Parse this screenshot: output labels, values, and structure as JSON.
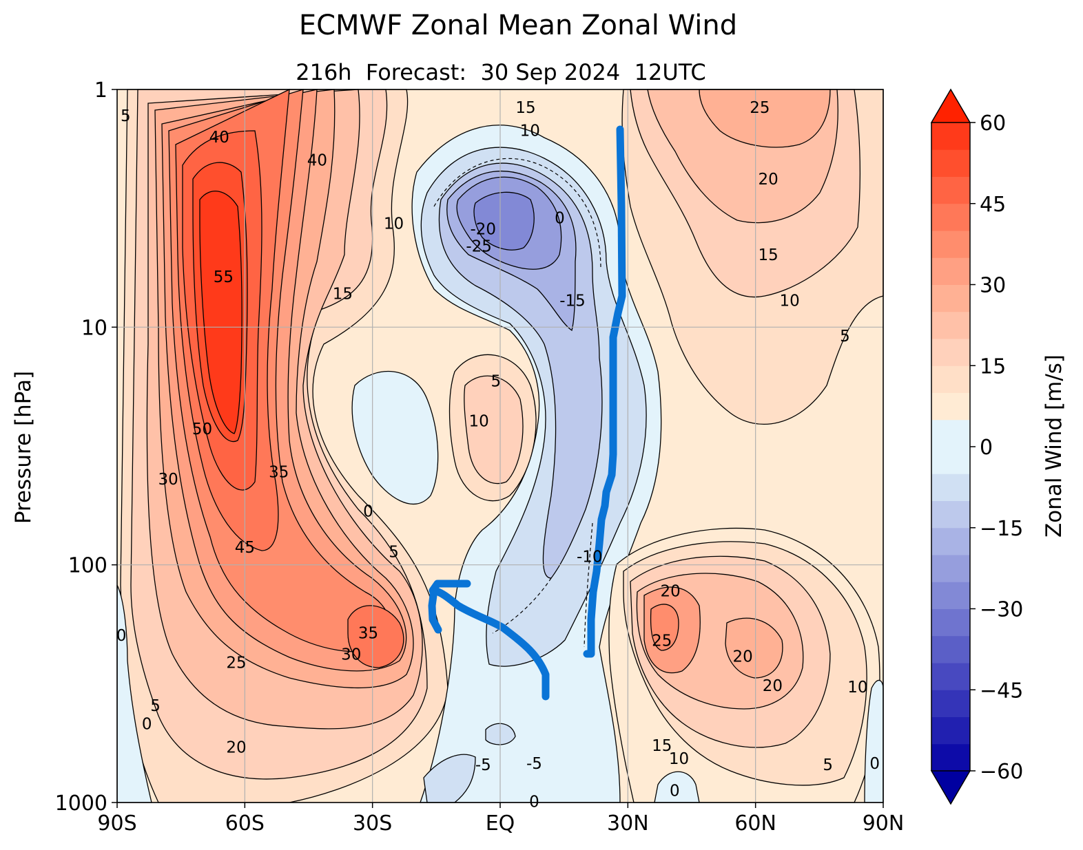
{
  "chart_data": {
    "type": "heatmap",
    "title": "ECMWF Zonal Mean Zonal Wind",
    "subtitle": "216h  Forecast:  30 Sep 2024  12UTC",
    "xlabel": "",
    "ylabel": "Pressure [hPa]",
    "x_range_deg": [
      -90,
      90
    ],
    "y_range_hpa": [
      1,
      1000
    ],
    "y_scale": "log",
    "x_ticks": [
      {
        "value": -90,
        "label": "90S"
      },
      {
        "value": -60,
        "label": "60S"
      },
      {
        "value": -30,
        "label": "30S"
      },
      {
        "value": 0,
        "label": "EQ"
      },
      {
        "value": 30,
        "label": "30N"
      },
      {
        "value": 60,
        "label": "60N"
      },
      {
        "value": 90,
        "label": "90N"
      }
    ],
    "y_ticks": [
      {
        "value": 1,
        "label": "1"
      },
      {
        "value": 10,
        "label": "10"
      },
      {
        "value": 100,
        "label": "100"
      },
      {
        "value": 1000,
        "label": "1000"
      }
    ],
    "grid": true,
    "colorbar": {
      "label": "Zonal Wind [m/s]",
      "range": [
        -60,
        60
      ],
      "step": 5,
      "ticks": [
        {
          "value": 60,
          "label": "60"
        },
        {
          "value": 45,
          "label": "45"
        },
        {
          "value": 30,
          "label": "30"
        },
        {
          "value": 15,
          "label": "15"
        },
        {
          "value": 0,
          "label": "0"
        },
        {
          "value": -15,
          "label": "−15"
        },
        {
          "value": -30,
          "label": "−30"
        },
        {
          "value": -45,
          "label": "−45"
        },
        {
          "value": -60,
          "label": "−60"
        }
      ],
      "extend": "both",
      "colors": {
        "60": "#ff2200",
        "55": "#ff3a1a",
        "50": "#ff4f2d",
        "45": "#ff6444",
        "40": "#ff7858",
        "35": "#ff8d6d",
        "30": "#ffa083",
        "25": "#ffb194",
        "20": "#ffc1a8",
        "15": "#ffd1bb",
        "10": "#ffdfc7",
        "5": "#ffebd4",
        "0": "#e3f3fb",
        "-5": "#d0e0f3",
        "-10": "#bdc9ec",
        "-15": "#a9b3e5",
        "-20": "#969edd",
        "-25": "#8289d6",
        "-30": "#6f74cf",
        "-35": "#5b5fc7",
        "-40": "#4849c0",
        "-45": "#3434b8",
        "-50": "#2120b0",
        "-55": "#0d0ba8",
        "-60": "#0000a0"
      }
    },
    "contour_labels": [
      {
        "value": "5",
        "lat": -88,
        "p": 1.3
      },
      {
        "value": "40",
        "lat": -66,
        "p": 1.6
      },
      {
        "value": "40",
        "lat": -43,
        "p": 2.0
      },
      {
        "value": "55",
        "lat": -65,
        "p": 6.2
      },
      {
        "value": "50",
        "lat": -70,
        "p": 27
      },
      {
        "value": "30",
        "lat": -78,
        "p": 44
      },
      {
        "value": "35",
        "lat": -52,
        "p": 41
      },
      {
        "value": "45",
        "lat": -60,
        "p": 85
      },
      {
        "value": "10",
        "lat": -25,
        "p": 3.7
      },
      {
        "value": "15",
        "lat": -37,
        "p": 7.3
      },
      {
        "value": "0",
        "lat": -31,
        "p": 60
      },
      {
        "value": "5",
        "lat": -25,
        "p": 89
      },
      {
        "value": "10",
        "lat": -5,
        "p": 25
      },
      {
        "value": "5",
        "lat": -1,
        "p": 17
      },
      {
        "value": "-20",
        "lat": -4,
        "p": 3.9
      },
      {
        "value": "-25",
        "lat": -5,
        "p": 4.6
      },
      {
        "value": "0",
        "lat": 14,
        "p": 3.5
      },
      {
        "value": "-15",
        "lat": 17,
        "p": 7.8
      },
      {
        "value": "-10",
        "lat": 21,
        "p": 93
      },
      {
        "value": "15",
        "lat": 6,
        "p": 1.2
      },
      {
        "value": "10",
        "lat": 7,
        "p": 1.5
      },
      {
        "value": "25",
        "lat": 61,
        "p": 1.2
      },
      {
        "value": "20",
        "lat": 63,
        "p": 2.4
      },
      {
        "value": "15",
        "lat": 63,
        "p": 5.0
      },
      {
        "value": "10",
        "lat": 68,
        "p": 7.8
      },
      {
        "value": "5",
        "lat": 81,
        "p": 11
      },
      {
        "value": "0",
        "lat": -89,
        "p": 200
      },
      {
        "value": "25",
        "lat": -62,
        "p": 260
      },
      {
        "value": "30",
        "lat": -35,
        "p": 240
      },
      {
        "value": "35",
        "lat": -31,
        "p": 195
      },
      {
        "value": "20",
        "lat": -62,
        "p": 590
      },
      {
        "value": "5",
        "lat": -81,
        "p": 395
      },
      {
        "value": "0",
        "lat": -83,
        "p": 470
      },
      {
        "value": "20",
        "lat": 40,
        "p": 130
      },
      {
        "value": "25",
        "lat": 38,
        "p": 210
      },
      {
        "value": "20",
        "lat": 57,
        "p": 245
      },
      {
        "value": "20",
        "lat": 64,
        "p": 325
      },
      {
        "value": "15",
        "lat": 38,
        "p": 580
      },
      {
        "value": "10",
        "lat": 42,
        "p": 660
      },
      {
        "value": "10",
        "lat": 84,
        "p": 330
      },
      {
        "value": "5",
        "lat": 77,
        "p": 700
      },
      {
        "value": "0",
        "lat": 88,
        "p": 690
      },
      {
        "value": "0",
        "lat": 41,
        "p": 900
      },
      {
        "value": "-5",
        "lat": -4,
        "p": 700
      },
      {
        "value": "-5",
        "lat": 8,
        "p": 690
      },
      {
        "value": "0",
        "lat": 8,
        "p": 1000
      }
    ]
  }
}
